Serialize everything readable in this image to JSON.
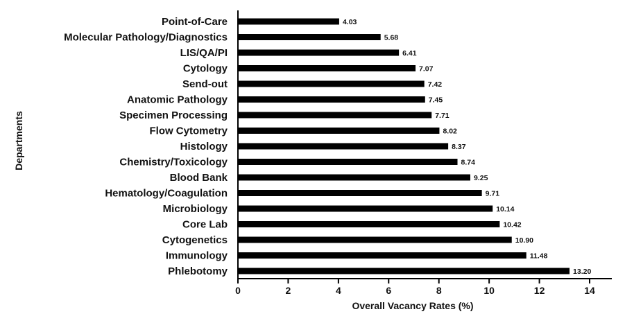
{
  "chart_data": {
    "type": "bar",
    "orientation": "horizontal",
    "xlabel": "Overall Vacancy Rates (%)",
    "ylabel": "Departments",
    "xlim": [
      0,
      14
    ],
    "xticks": [
      0,
      2,
      4,
      6,
      8,
      10,
      12,
      14
    ],
    "grid": false,
    "bar_color": "#000000",
    "categories": [
      "Point-of-Care",
      "Molecular Pathology/Diagnostics",
      "LIS/QA/PI",
      "Cytology",
      "Send-out",
      "Anatomic Pathology",
      "Specimen Processing",
      "Flow Cytometry",
      "Histology",
      "Chemistry/Toxicology",
      "Blood Bank",
      "Hematology/Coagulation",
      "Microbiology",
      "Core Lab",
      "Cytogenetics",
      "Immunology",
      "Phlebotomy"
    ],
    "values": [
      4.03,
      5.68,
      6.41,
      7.07,
      7.42,
      7.45,
      7.71,
      8.02,
      8.37,
      8.74,
      9.25,
      9.71,
      10.14,
      10.42,
      10.9,
      11.48,
      13.2
    ],
    "data_labels": [
      "4.03",
      "5.68",
      "6.41",
      "7.07",
      "7.42",
      "7.45",
      "7.71",
      "8.02",
      "8.37",
      "8.74",
      "9.25",
      "9.71",
      "10.14",
      "10.42",
      "10.90",
      "11.48",
      "13.20"
    ]
  }
}
